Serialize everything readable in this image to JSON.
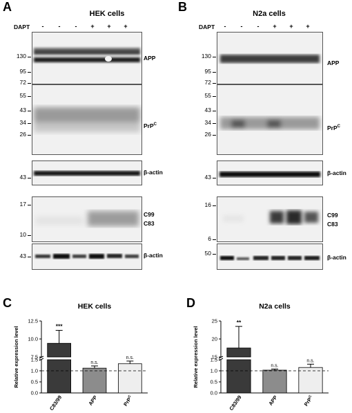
{
  "panels": {
    "A": {
      "letter": "A",
      "title": "HEK cells",
      "dapt_label": "DAPT",
      "lanes": [
        "-",
        "-",
        "-",
        "+",
        "+",
        "+"
      ],
      "blots": {
        "app": {
          "label": "APP",
          "markers": [
            "130",
            "95",
            "72"
          ]
        },
        "prp": {
          "label": "PrP",
          "label_sup": "C",
          "markers": [
            "55",
            "43",
            "34",
            "26"
          ]
        },
        "actin1": {
          "label": "β-actin",
          "markers": [
            "43"
          ]
        },
        "ctf": {
          "label_top": "C99",
          "label_bottom": "C83",
          "markers": [
            "17",
            "10"
          ]
        },
        "actin2": {
          "label": "β-actin",
          "markers": [
            "43"
          ]
        }
      }
    },
    "B": {
      "letter": "B",
      "title": "N2a cells",
      "dapt_label": "DAPT",
      "lanes": [
        "-",
        "-",
        "-",
        "+",
        "+",
        "+"
      ],
      "blots": {
        "app": {
          "label": "APP",
          "markers": [
            "130",
            "95",
            "72"
          ]
        },
        "prp": {
          "label": "PrP",
          "label_sup": "C",
          "markers": [
            "55",
            "43",
            "34",
            "26"
          ]
        },
        "actin1": {
          "label": "β-actin",
          "markers": [
            "43"
          ]
        },
        "ctf": {
          "label_top": "C99",
          "label_bottom": "C83",
          "markers": [
            "16",
            "6"
          ]
        },
        "actin2": {
          "label": "β-actin",
          "markers": [
            "50"
          ]
        }
      }
    }
  },
  "chart_data": [
    {
      "type": "bar",
      "panel": "C",
      "title": "HEK cells",
      "ylabel": "Relative expression level",
      "categories": [
        "C83/99",
        "APP",
        "PrPC"
      ],
      "values": [
        9.4,
        1.12,
        1.32
      ],
      "errors": [
        1.8,
        0.1,
        0.12
      ],
      "significance": [
        "***",
        "n.s.",
        "n.s."
      ],
      "bar_colors": [
        "#3a3a3a",
        "#8c8c8c",
        "#eeeeee"
      ],
      "yaxis_break": {
        "lower": [
          0,
          1.5
        ],
        "upper": [
          7.5,
          12.5
        ]
      },
      "yticks_lower": [
        "0.0",
        "0.5",
        "1.0",
        "1.5"
      ],
      "yticks_upper": [
        "7.5",
        "10.0",
        "12.5"
      ],
      "reference_line": 1.0
    },
    {
      "type": "bar",
      "panel": "D",
      "title": "N2a cells",
      "ylabel": "Relative expression level",
      "categories": [
        "C83/99",
        "APP",
        "PrPC"
      ],
      "values": [
        17.5,
        1.03,
        1.15
      ],
      "errors": [
        6.0,
        0.05,
        0.15
      ],
      "significance": [
        "**",
        "n.s.",
        "n.s."
      ],
      "bar_colors": [
        "#3a3a3a",
        "#8c8c8c",
        "#eeeeee"
      ],
      "yaxis_break": {
        "lower": [
          0,
          1.5
        ],
        "upper": [
          15,
          25
        ]
      },
      "yticks_lower": [
        "0.0",
        "0.5",
        "1.0",
        "1.5"
      ],
      "yticks_upper": [
        "15",
        "20",
        "25"
      ],
      "reference_line": 1.0
    }
  ]
}
